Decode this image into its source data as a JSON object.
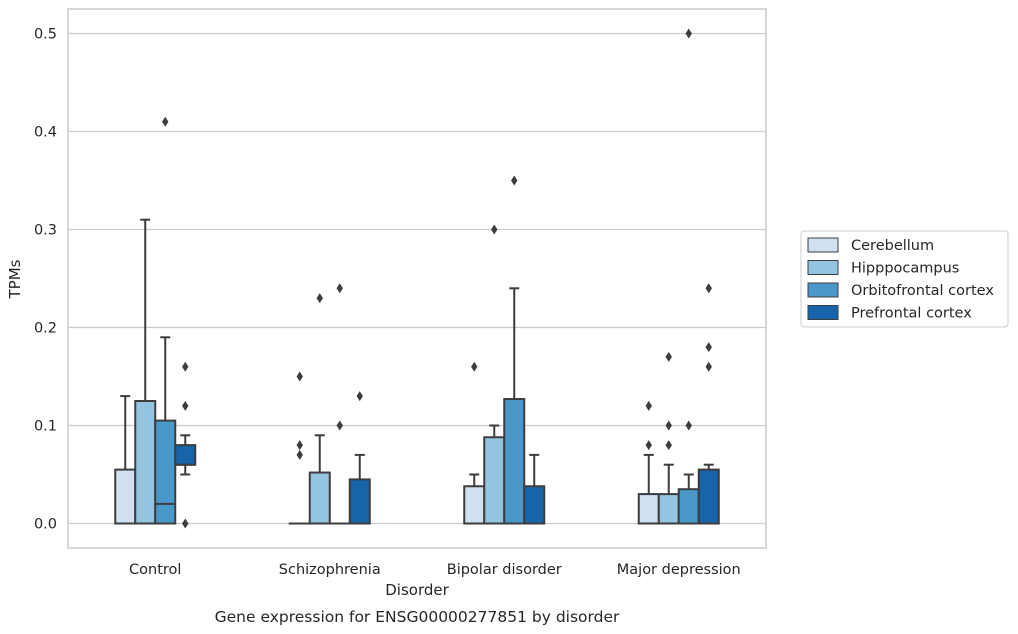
{
  "caption": "Gene expression for ENSG00000277851 by disorder",
  "chart_data": {
    "type": "box",
    "xlabel": "Disorder",
    "ylabel": "TPMs",
    "ylim": [
      -0.025,
      0.525
    ],
    "yticks": [
      "0.0",
      "0.1",
      "0.2",
      "0.3",
      "0.4",
      "0.5"
    ],
    "grid": true,
    "legend_position": "right",
    "categories": [
      "Control",
      "Schizophrenia",
      "Bipolar disorder",
      "Major depression"
    ],
    "series": [
      {
        "name": "Cerebellum",
        "color": "#d0e1f2",
        "boxes": [
          {
            "q1": 0.0,
            "median": 0.0,
            "q3": 0.055,
            "whisker_low": 0.0,
            "whisker_high": 0.13,
            "outliers": []
          },
          {
            "q1": 0.0,
            "median": 0.0,
            "q3": 0.0,
            "whisker_low": 0.0,
            "whisker_high": 0.0,
            "outliers": [
              0.07,
              0.08,
              0.15
            ]
          },
          {
            "q1": 0.0,
            "median": 0.0,
            "q3": 0.038,
            "whisker_low": 0.0,
            "whisker_high": 0.05,
            "outliers": [
              0.16
            ]
          },
          {
            "q1": 0.0,
            "median": 0.0,
            "q3": 0.03,
            "whisker_low": 0.0,
            "whisker_high": 0.07,
            "outliers": [
              0.08,
              0.12
            ]
          }
        ]
      },
      {
        "name": "Hipppocampus",
        "color": "#94c4df",
        "boxes": [
          {
            "q1": 0.0,
            "median": 0.0,
            "q3": 0.125,
            "whisker_low": 0.0,
            "whisker_high": 0.31,
            "outliers": []
          },
          {
            "q1": 0.0,
            "median": 0.0,
            "q3": 0.052,
            "whisker_low": 0.0,
            "whisker_high": 0.09,
            "outliers": [
              0.23
            ]
          },
          {
            "q1": 0.0,
            "median": 0.0,
            "q3": 0.088,
            "whisker_low": 0.0,
            "whisker_high": 0.1,
            "outliers": [
              0.3
            ]
          },
          {
            "q1": 0.0,
            "median": 0.0,
            "q3": 0.03,
            "whisker_low": 0.0,
            "whisker_high": 0.06,
            "outliers": [
              0.08,
              0.1,
              0.17
            ]
          }
        ]
      },
      {
        "name": "Orbitofrontal cortex",
        "color": "#4a98c9",
        "boxes": [
          {
            "q1": 0.0,
            "median": 0.02,
            "q3": 0.105,
            "whisker_low": 0.0,
            "whisker_high": 0.19,
            "outliers": [
              0.41
            ]
          },
          {
            "q1": 0.0,
            "median": 0.0,
            "q3": 0.0,
            "whisker_low": 0.0,
            "whisker_high": 0.0,
            "outliers": [
              0.1,
              0.24
            ]
          },
          {
            "q1": 0.0,
            "median": 0.0,
            "q3": 0.127,
            "whisker_low": 0.0,
            "whisker_high": 0.24,
            "outliers": [
              0.35
            ]
          },
          {
            "q1": 0.0,
            "median": 0.0,
            "q3": 0.035,
            "whisker_low": 0.0,
            "whisker_high": 0.05,
            "outliers": [
              0.1,
              0.5
            ]
          }
        ]
      },
      {
        "name": "Prefrontal cortex",
        "color": "#1764ab",
        "boxes": [
          {
            "q1": 0.06,
            "median": 0.06,
            "q3": 0.08,
            "whisker_low": 0.05,
            "whisker_high": 0.09,
            "outliers": [
              0.0,
              0.12,
              0.16
            ]
          },
          {
            "q1": 0.0,
            "median": 0.0,
            "q3": 0.045,
            "whisker_low": 0.0,
            "whisker_high": 0.07,
            "outliers": [
              0.13
            ]
          },
          {
            "q1": 0.0,
            "median": 0.0,
            "q3": 0.038,
            "whisker_low": 0.0,
            "whisker_high": 0.07,
            "outliers": []
          },
          {
            "q1": 0.0,
            "median": 0.0,
            "q3": 0.055,
            "whisker_low": 0.0,
            "whisker_high": 0.06,
            "outliers": [
              0.16,
              0.18,
              0.24
            ]
          }
        ]
      }
    ]
  }
}
